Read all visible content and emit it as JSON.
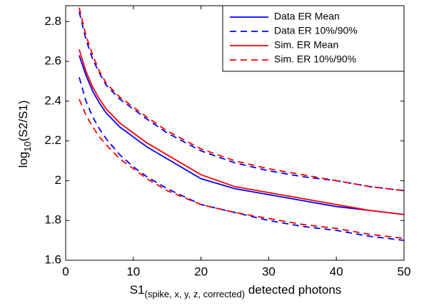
{
  "chart_data": {
    "type": "line",
    "xlabel": {
      "main": "S1",
      "sub": "(spike, x, y, z, corrected)",
      "rest": " detected photons"
    },
    "ylabel": {
      "main": "log",
      "sub": "10",
      "rest": "(S2/S1)"
    },
    "x": [
      2,
      3,
      4,
      5,
      6,
      8,
      10,
      12,
      15,
      20,
      25,
      30,
      35,
      40,
      45,
      50
    ],
    "series": [
      {
        "name": "Data ER Mean",
        "color": "#0000ff",
        "dashed": false,
        "values": [
          2.63,
          2.53,
          2.45,
          2.39,
          2.34,
          2.27,
          2.22,
          2.17,
          2.11,
          2.01,
          1.96,
          1.93,
          1.9,
          1.87,
          1.85,
          1.83
        ]
      },
      {
        "name": "Data ER 10%/90%",
        "color": "#0000ff",
        "dashed": true,
        "values": [
          2.52,
          2.4,
          2.32,
          2.26,
          2.21,
          2.13,
          2.07,
          2.02,
          1.96,
          1.88,
          1.84,
          1.8,
          1.77,
          1.75,
          1.72,
          1.7
        ],
        "values_90": [
          2.85,
          2.71,
          2.61,
          2.54,
          2.48,
          2.41,
          2.36,
          2.31,
          2.24,
          2.15,
          2.09,
          2.05,
          2.02,
          2.0,
          1.97,
          1.95
        ]
      },
      {
        "name": "Sim. ER Mean",
        "color": "#ff0000",
        "dashed": false,
        "values": [
          2.66,
          2.55,
          2.47,
          2.41,
          2.36,
          2.29,
          2.24,
          2.19,
          2.13,
          2.03,
          1.97,
          1.94,
          1.91,
          1.88,
          1.85,
          1.83
        ]
      },
      {
        "name": "Sim. ER 10%/90%",
        "color": "#ff0000",
        "dashed": true,
        "values": [
          2.41,
          2.33,
          2.27,
          2.22,
          2.18,
          2.11,
          2.06,
          2.01,
          1.95,
          1.88,
          1.84,
          1.81,
          1.78,
          1.76,
          1.73,
          1.71
        ],
        "values_90": [
          2.87,
          2.73,
          2.63,
          2.55,
          2.49,
          2.42,
          2.37,
          2.32,
          2.25,
          2.16,
          2.1,
          2.06,
          2.03,
          2.0,
          1.97,
          1.95
        ]
      }
    ],
    "xlim": [
      0,
      50
    ],
    "xticks": [
      0,
      10,
      20,
      30,
      40,
      50
    ],
    "ylim": [
      1.6,
      2.88
    ],
    "yticks": [
      1.6,
      1.8,
      2,
      2.2,
      2.4,
      2.6,
      2.8
    ],
    "legend": "upper right",
    "grid": false
  }
}
